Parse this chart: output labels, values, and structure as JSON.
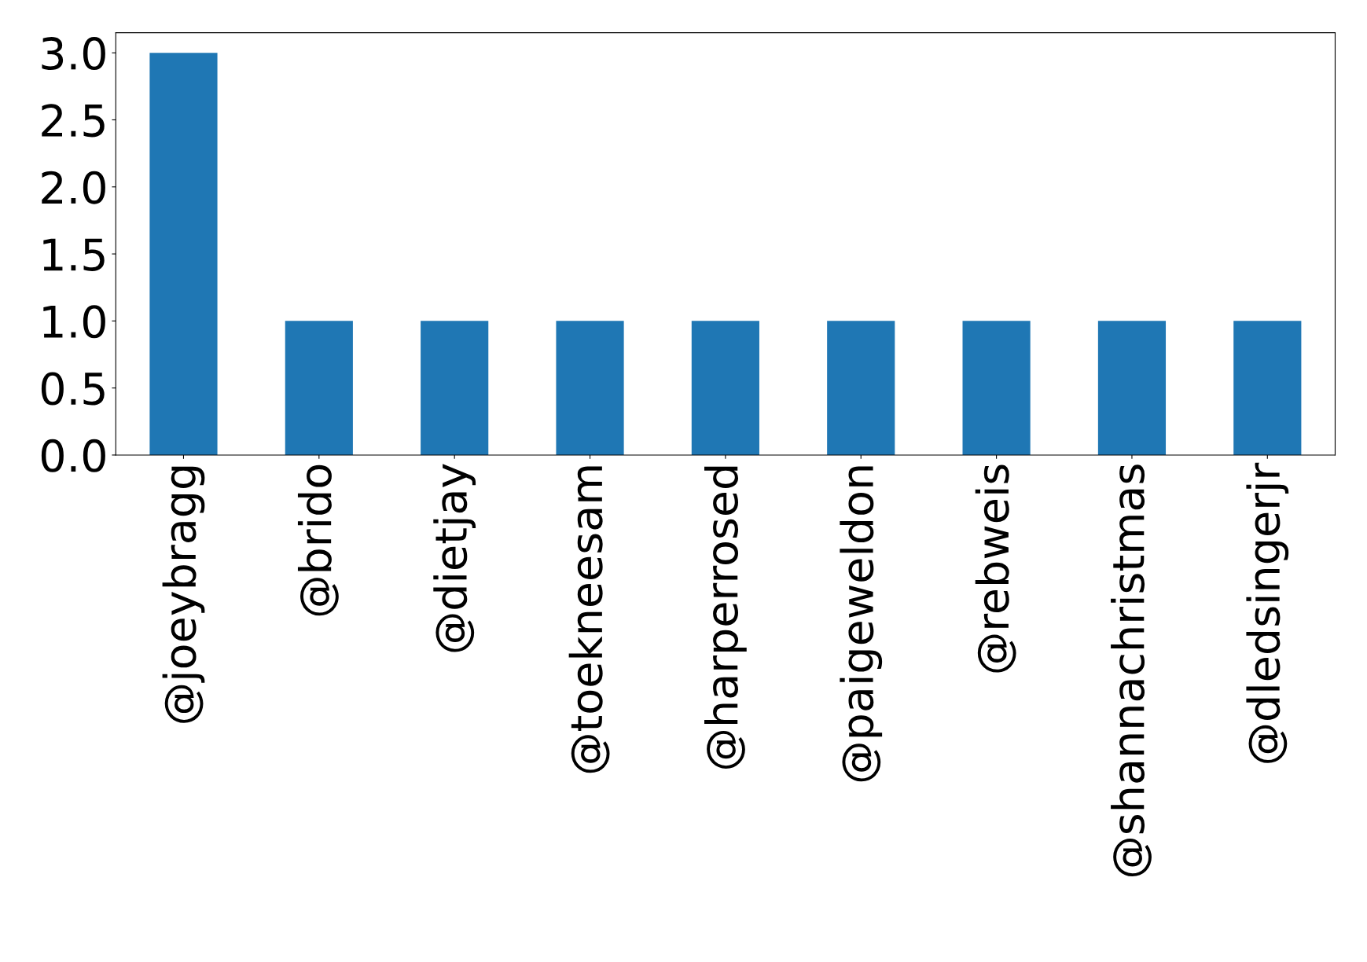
{
  "chart_data": {
    "type": "bar",
    "categories": [
      "@joeybragg",
      "@brido",
      "@dietjay",
      "@toekneesam",
      "@harperrosed",
      "@paigeweldon",
      "@rebweis",
      "@shannachristmas",
      "@dledsingerjr"
    ],
    "values": [
      3,
      1,
      1,
      1,
      1,
      1,
      1,
      1,
      1
    ],
    "color": "#1f77b4",
    "ylim": [
      0,
      3.15
    ],
    "yticks": [
      {
        "value": 0,
        "label": "0.0"
      },
      {
        "value": 0.5,
        "label": "0.5"
      },
      {
        "value": 1,
        "label": "1.0"
      },
      {
        "value": 1.5,
        "label": "1.5"
      },
      {
        "value": 2,
        "label": "2.0"
      },
      {
        "value": 2.5,
        "label": "2.5"
      },
      {
        "value": 3,
        "label": "3.0"
      }
    ],
    "grid": false,
    "legend": false
  }
}
